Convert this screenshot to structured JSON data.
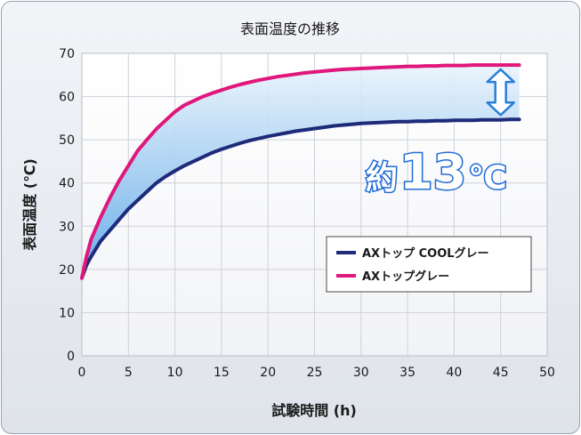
{
  "chart_data": {
    "type": "line",
    "title": "表面温度の推移",
    "xlabel": "試験時間 (h)",
    "ylabel": "表面温度 (℃)",
    "xlim": [
      0,
      50
    ],
    "ylim": [
      0,
      70
    ],
    "xticks": [
      0,
      5,
      10,
      15,
      20,
      25,
      30,
      35,
      40,
      45,
      50
    ],
    "yticks": [
      0,
      10,
      20,
      30,
      40,
      50,
      60,
      70
    ],
    "grid": true,
    "legend_position": "right-lower",
    "series": [
      {
        "name": "AXトップ COOLグレー",
        "color": "#1e2a7a",
        "x": [
          0,
          0.5,
          1,
          2,
          3,
          4,
          5,
          6,
          7,
          8,
          9,
          10,
          11,
          12,
          13,
          14,
          15,
          16,
          17,
          18,
          19,
          20,
          21,
          22,
          23,
          24,
          25,
          26,
          27,
          28,
          29,
          30,
          31,
          32,
          33,
          34,
          35,
          36,
          37,
          38,
          39,
          40,
          41,
          42,
          43,
          44,
          45,
          46,
          47
        ],
        "values": [
          18,
          21,
          23,
          26.5,
          29,
          31.5,
          34,
          36,
          38,
          40,
          41.5,
          42.8,
          44,
          45,
          46,
          47,
          47.8,
          48.5,
          49.2,
          49.8,
          50.3,
          50.8,
          51.2,
          51.6,
          52,
          52.3,
          52.6,
          52.9,
          53.2,
          53.4,
          53.6,
          53.8,
          53.9,
          54,
          54.1,
          54.2,
          54.2,
          54.3,
          54.3,
          54.4,
          54.4,
          54.5,
          54.5,
          54.5,
          54.6,
          54.6,
          54.6,
          54.7,
          54.7
        ]
      },
      {
        "name": "AXトップグレー",
        "color": "#e0177c",
        "x": [
          0,
          0.5,
          1,
          2,
          3,
          4,
          5,
          6,
          7,
          8,
          9,
          10,
          11,
          12,
          13,
          14,
          15,
          16,
          17,
          18,
          19,
          20,
          21,
          22,
          23,
          24,
          25,
          26,
          27,
          28,
          29,
          30,
          31,
          32,
          33,
          34,
          35,
          36,
          37,
          38,
          39,
          40,
          41,
          42,
          43,
          44,
          45,
          46,
          47
        ],
        "values": [
          18,
          23,
          27,
          32,
          36.5,
          40.5,
          44,
          47.5,
          50,
          52.5,
          54.5,
          56.5,
          58,
          59,
          60,
          60.8,
          61.5,
          62.2,
          62.8,
          63.3,
          63.8,
          64.2,
          64.6,
          64.9,
          65.2,
          65.5,
          65.7,
          65.9,
          66.1,
          66.3,
          66.4,
          66.5,
          66.6,
          66.7,
          66.8,
          66.9,
          67,
          67,
          67.1,
          67.1,
          67.2,
          67.2,
          67.2,
          67.3,
          67.3,
          67.3,
          67.3,
          67.3,
          67.3
        ]
      }
    ],
    "annotation": {
      "text": "約13℃",
      "prefix": "約",
      "number": "13",
      "unit": "℃",
      "arrow_at_x": 45
    }
  }
}
